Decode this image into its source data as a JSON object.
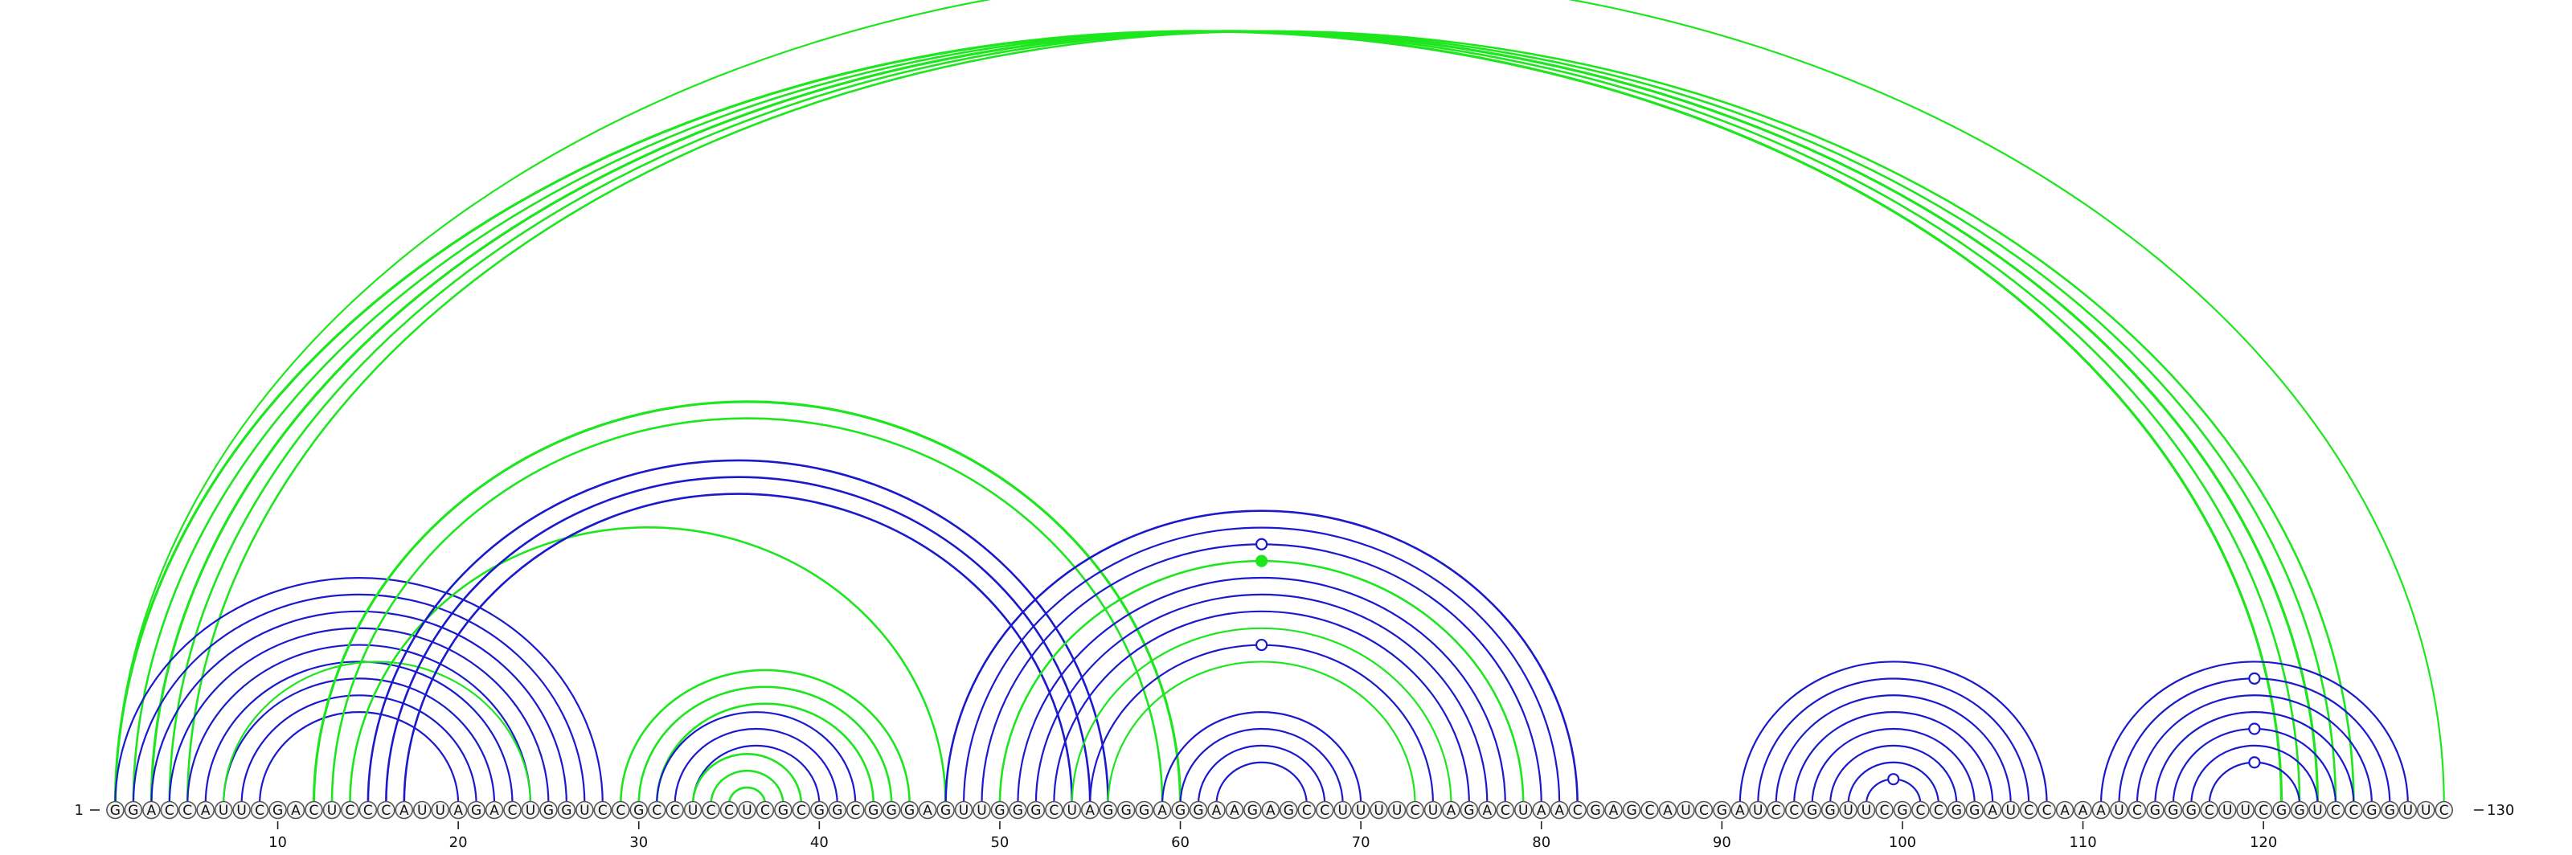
{
  "diagram": {
    "type": "rna-arc-diagram",
    "sequence": "GGACCAUUCGACUCCCAUUAGACUGGUCCGCCUCCUCGCGGCGGGAGUUGGGCUAGGGAGGAAGAGCCUUUUCUAGACUAACGAGCAUCGAUCCGGUUCGCCGGAUCCAAAUCGGGCUUCGGUCCGGUUC",
    "start_label": "1",
    "end_label": "130",
    "ticks": [
      10,
      20,
      30,
      40,
      50,
      60,
      70,
      80,
      90,
      100,
      110,
      120
    ],
    "colors": {
      "green": "#1ee61e",
      "blue": "#1a1acc"
    },
    "arcs": [
      {
        "from": 1,
        "to": 121,
        "color": "green",
        "weight": 3.2
      },
      {
        "from": 2,
        "to": 122,
        "color": "green",
        "weight": 2.6
      },
      {
        "from": 3,
        "to": 123,
        "color": "green",
        "weight": 3.2
      },
      {
        "from": 4,
        "to": 124,
        "color": "green",
        "weight": 2.6
      },
      {
        "from": 5,
        "to": 125,
        "color": "green",
        "weight": 2.6
      },
      {
        "from": 1,
        "to": 130,
        "color": "green",
        "weight": 2.2,
        "marker": "open"
      },
      {
        "from": 1,
        "to": 28,
        "color": "blue",
        "weight": 2.2
      },
      {
        "from": 2,
        "to": 27,
        "color": "blue",
        "weight": 2.2
      },
      {
        "from": 3,
        "to": 26,
        "color": "blue",
        "weight": 2.2
      },
      {
        "from": 4,
        "to": 25,
        "color": "blue",
        "weight": 2.2
      },
      {
        "from": 5,
        "to": 24,
        "color": "blue",
        "weight": 2.2
      },
      {
        "from": 6,
        "to": 23,
        "color": "blue",
        "weight": 2.2
      },
      {
        "from": 7,
        "to": 22,
        "color": "blue",
        "weight": 2.2
      },
      {
        "from": 8,
        "to": 21,
        "color": "blue",
        "weight": 2.2
      },
      {
        "from": 9,
        "to": 20,
        "color": "blue",
        "weight": 2.2
      },
      {
        "from": 7,
        "to": 24,
        "color": "green",
        "weight": 2.2
      },
      {
        "from": 12,
        "to": 60,
        "color": "green",
        "weight": 3.2
      },
      {
        "from": 13,
        "to": 59,
        "color": "green",
        "weight": 2.6
      },
      {
        "from": 14,
        "to": 47,
        "color": "green",
        "weight": 2.6
      },
      {
        "from": 15,
        "to": 56,
        "color": "blue",
        "weight": 2.6
      },
      {
        "from": 16,
        "to": 55,
        "color": "blue",
        "weight": 2.6
      },
      {
        "from": 17,
        "to": 54,
        "color": "blue",
        "weight": 2.6
      },
      {
        "from": 29,
        "to": 45,
        "color": "green",
        "weight": 2.6
      },
      {
        "from": 30,
        "to": 44,
        "color": "green",
        "weight": 2.6
      },
      {
        "from": 31,
        "to": 43,
        "color": "green",
        "weight": 2.6
      },
      {
        "from": 31,
        "to": 42,
        "color": "blue",
        "weight": 2.2
      },
      {
        "from": 32,
        "to": 41,
        "color": "blue",
        "weight": 2.2
      },
      {
        "from": 33,
        "to": 40,
        "color": "blue",
        "weight": 2.2
      },
      {
        "from": 33,
        "to": 39,
        "color": "green",
        "weight": 2.6
      },
      {
        "from": 34,
        "to": 38,
        "color": "green",
        "weight": 2.6
      },
      {
        "from": 35,
        "to": 37,
        "color": "green",
        "weight": 2.6
      },
      {
        "from": 47,
        "to": 82,
        "color": "blue",
        "weight": 2.6
      },
      {
        "from": 48,
        "to": 81,
        "color": "blue",
        "weight": 2.2
      },
      {
        "from": 49,
        "to": 80,
        "color": "blue",
        "weight": 2.2,
        "marker": "open"
      },
      {
        "from": 50,
        "to": 79,
        "color": "green",
        "weight": 2.6,
        "marker": "filled"
      },
      {
        "from": 51,
        "to": 78,
        "color": "blue",
        "weight": 2.2
      },
      {
        "from": 52,
        "to": 77,
        "color": "blue",
        "weight": 2.2
      },
      {
        "from": 53,
        "to": 76,
        "color": "blue",
        "weight": 2.2
      },
      {
        "from": 54,
        "to": 75,
        "color": "green",
        "weight": 2.2
      },
      {
        "from": 55,
        "to": 74,
        "color": "blue",
        "weight": 2.2,
        "marker": "open"
      },
      {
        "from": 56,
        "to": 73,
        "color": "green",
        "weight": 2.2
      },
      {
        "from": 59,
        "to": 70,
        "color": "blue",
        "weight": 2.2
      },
      {
        "from": 60,
        "to": 69,
        "color": "blue",
        "weight": 2.2
      },
      {
        "from": 61,
        "to": 68,
        "color": "blue",
        "weight": 2.2
      },
      {
        "from": 62,
        "to": 67,
        "color": "blue",
        "weight": 2.2
      },
      {
        "from": 91,
        "to": 108,
        "color": "blue",
        "weight": 2.2
      },
      {
        "from": 92,
        "to": 107,
        "color": "blue",
        "weight": 2.2
      },
      {
        "from": 93,
        "to": 106,
        "color": "blue",
        "weight": 2.2
      },
      {
        "from": 94,
        "to": 105,
        "color": "blue",
        "weight": 2.2
      },
      {
        "from": 95,
        "to": 104,
        "color": "blue",
        "weight": 2.2
      },
      {
        "from": 96,
        "to": 103,
        "color": "blue",
        "weight": 2.2
      },
      {
        "from": 97,
        "to": 102,
        "color": "blue",
        "weight": 2.2
      },
      {
        "from": 98,
        "to": 101,
        "color": "blue",
        "weight": 2.2,
        "marker": "open"
      },
      {
        "from": 111,
        "to": 128,
        "color": "blue",
        "weight": 2.2
      },
      {
        "from": 112,
        "to": 127,
        "color": "blue",
        "weight": 2.2,
        "marker": "open"
      },
      {
        "from": 113,
        "to": 126,
        "color": "blue",
        "weight": 2.2
      },
      {
        "from": 114,
        "to": 125,
        "color": "blue",
        "weight": 2.2
      },
      {
        "from": 115,
        "to": 124,
        "color": "blue",
        "weight": 2.2,
        "marker": "open"
      },
      {
        "from": 116,
        "to": 123,
        "color": "blue",
        "weight": 2.2
      },
      {
        "from": 117,
        "to": 122,
        "color": "blue",
        "weight": 2.2,
        "marker": "open"
      }
    ]
  }
}
